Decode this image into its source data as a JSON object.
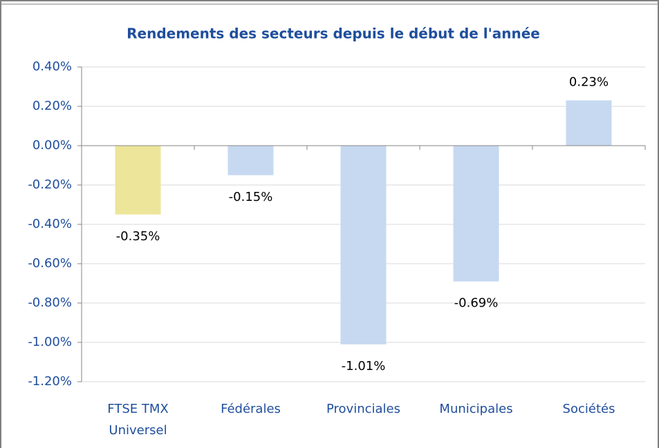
{
  "chart_data": {
    "type": "bar",
    "title": "Rendements des secteurs depuis le début de l'année",
    "categories": [
      "FTSE TMX Universel",
      "Fédérales",
      "Provinciales",
      "Municipales",
      "Sociétés"
    ],
    "values": [
      -0.35,
      -0.15,
      -1.01,
      -0.69,
      0.23
    ],
    "value_labels": [
      "-0.35%",
      "-0.15%",
      "-1.01%",
      "-0.69%",
      "0.23%"
    ],
    "colors": [
      "#ede59a",
      "#c6d9f1",
      "#c6d9f1",
      "#c6d9f1",
      "#c6d9f1"
    ],
    "ylim": [
      -1.2,
      0.4
    ],
    "yticks": [
      {
        "value": 0.4,
        "label": "0.40%"
      },
      {
        "value": 0.2,
        "label": "0.20%"
      },
      {
        "value": 0,
        "label": "0.00%"
      },
      {
        "value": -0.2,
        "label": "-0.20%"
      },
      {
        "value": -0.4,
        "label": "-0.40%"
      },
      {
        "value": -0.6,
        "label": "-0.60%"
      },
      {
        "value": -0.8,
        "label": "-0.80%"
      },
      {
        "value": -1.0,
        "label": "-1.00%"
      },
      {
        "value": -1.2,
        "label": "-1.20%"
      }
    ],
    "grid": true
  }
}
